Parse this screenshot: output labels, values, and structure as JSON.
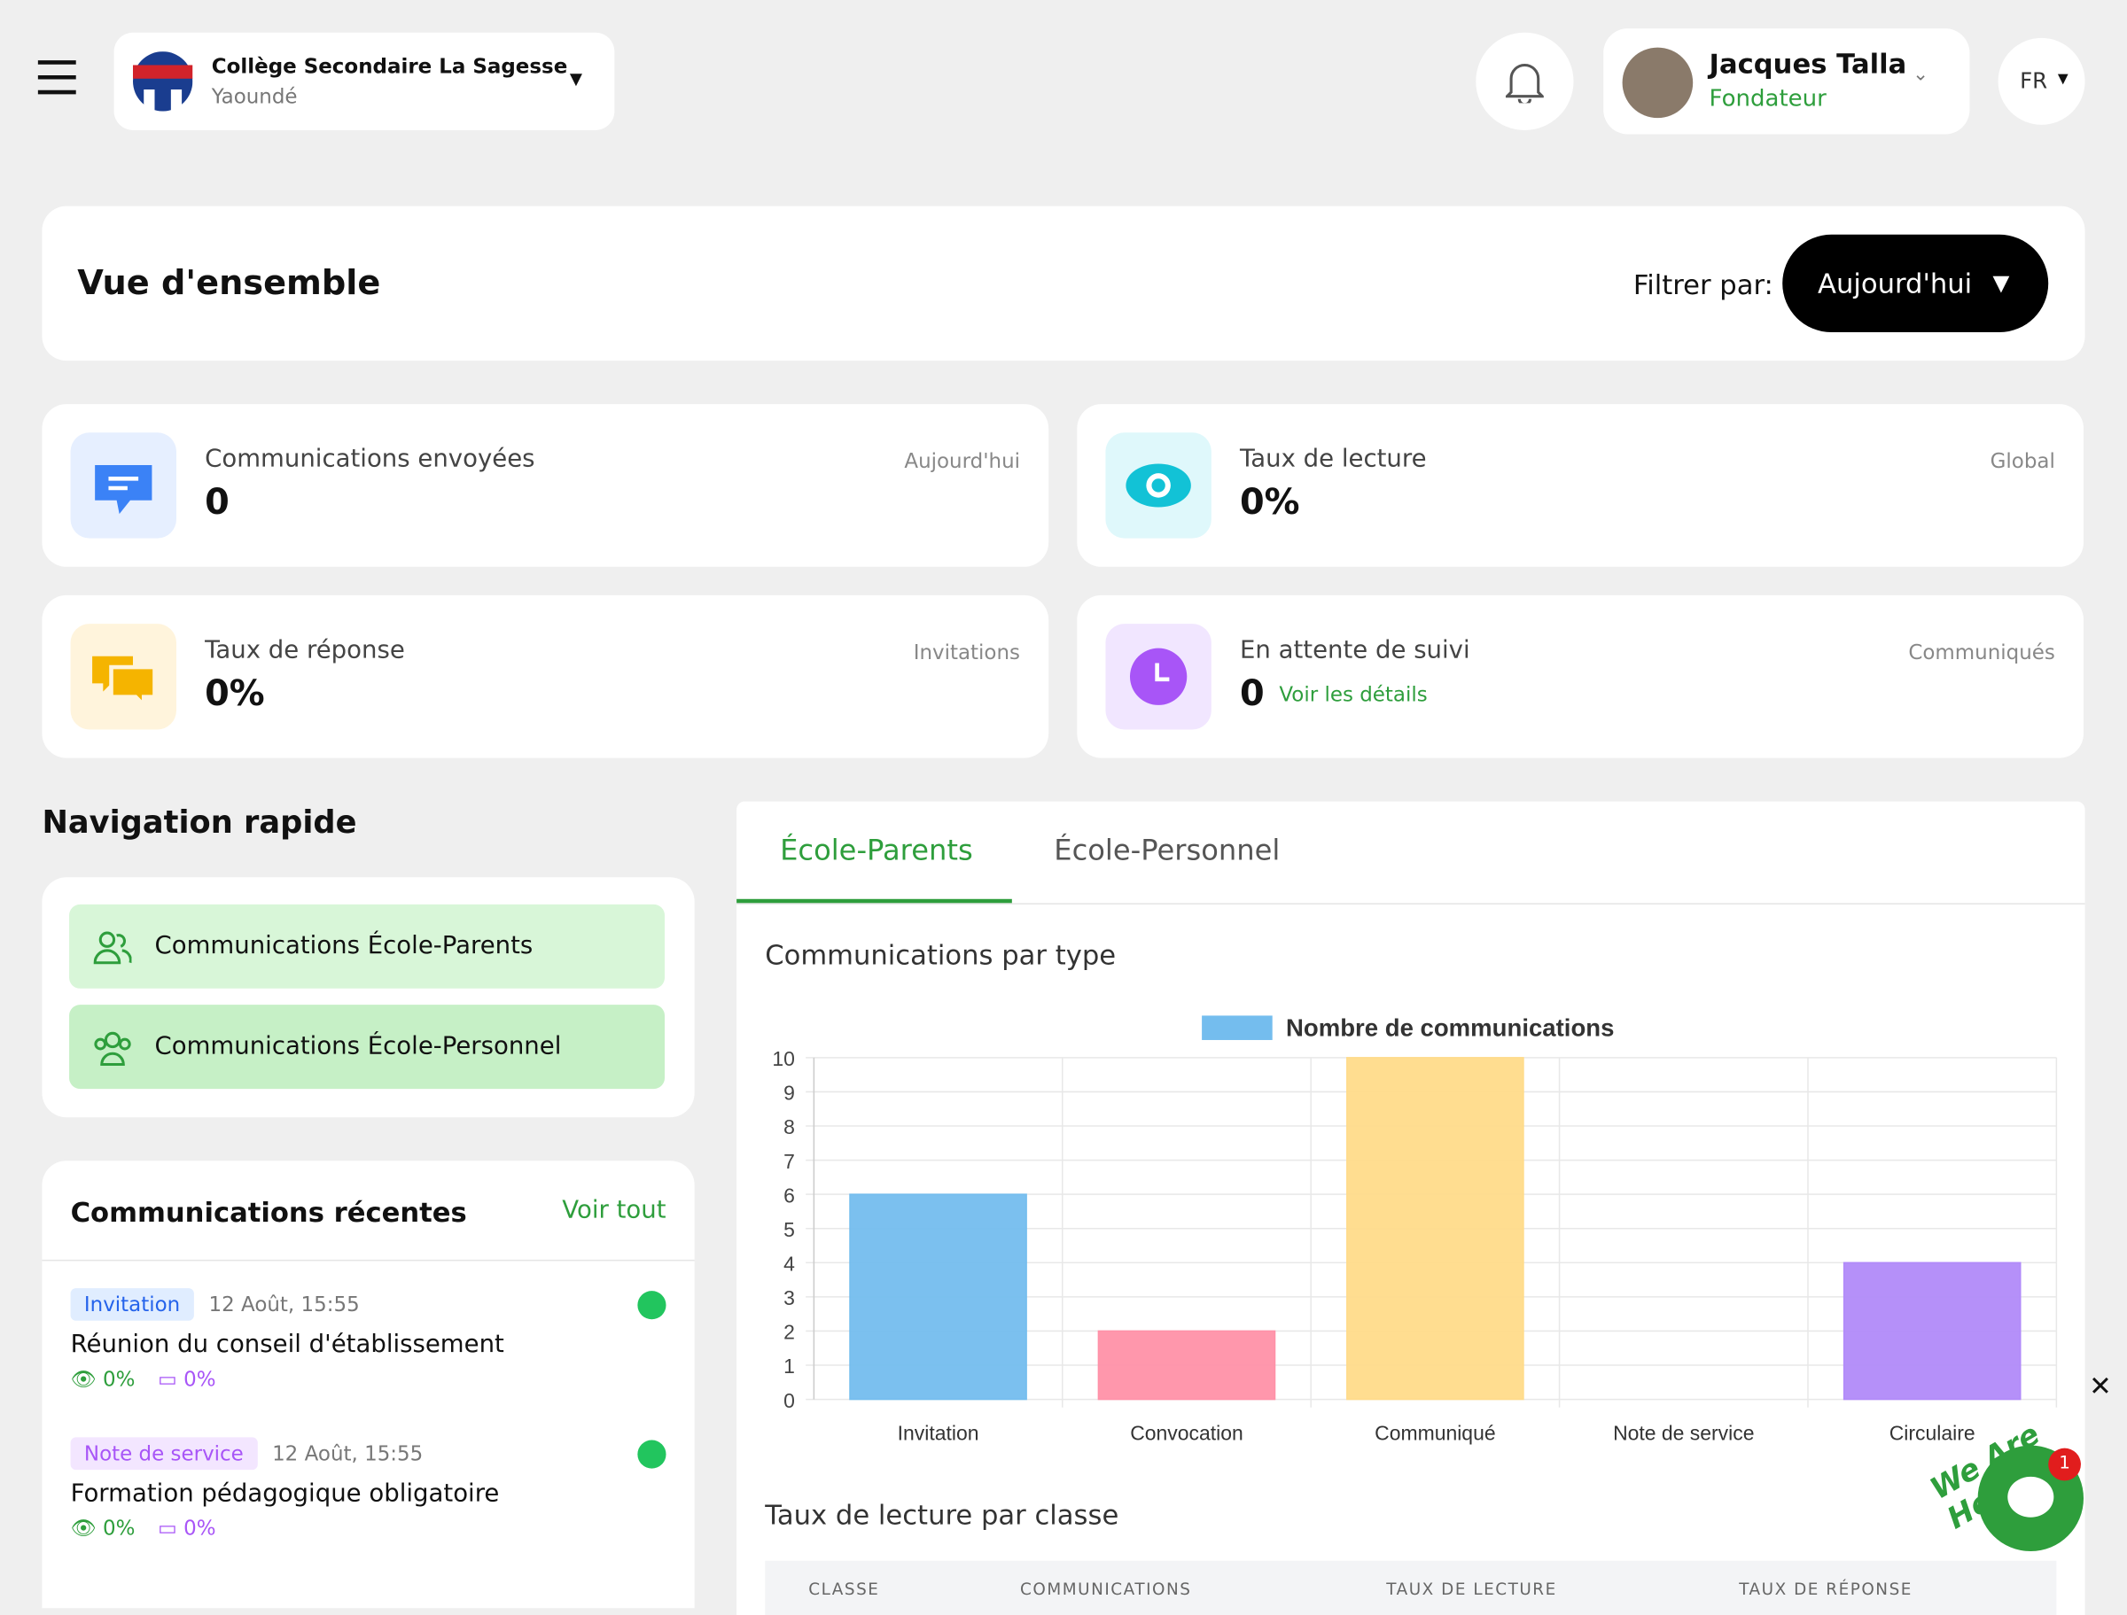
{
  "header": {
    "school_name": "Collège Secondaire La Sagesse",
    "city": "Yaoundé",
    "user_name": "Jacques Talla",
    "user_role": "Fondateur",
    "language": "FR"
  },
  "overview": {
    "title": "Vue d'ensemble",
    "filter_label": "Filtrer par:",
    "filter_value": "Aujourd'hui"
  },
  "stats": [
    {
      "label": "Communications envoyées",
      "value": "0",
      "scope": "Aujourd'hui"
    },
    {
      "label": "Taux de lecture",
      "value": "0%",
      "scope": "Global"
    },
    {
      "label": "Taux de réponse",
      "value": "0%",
      "scope": "Invitations"
    },
    {
      "label": "En attente de suivi",
      "value": "0",
      "scope": "Communiqués",
      "link": "Voir les détails"
    }
  ],
  "quick_nav": {
    "title": "Navigation rapide",
    "items": [
      "Communications École-Parents",
      "Communications École-Personnel"
    ]
  },
  "recent": {
    "title": "Communications récentes",
    "see_all": "Voir tout",
    "items": [
      {
        "tag": "Invitation",
        "date": "12 Août, 15:55",
        "title": "Réunion du conseil d'établissement",
        "read": "0%",
        "reply": "0%"
      },
      {
        "tag": "Note de service",
        "date": "12 Août, 15:55",
        "title": "Formation pédagogique obligatoire",
        "read": "0%",
        "reply": "0%"
      }
    ]
  },
  "tabs": [
    "École-Parents",
    "École-Personnel"
  ],
  "chart": {
    "type": "bar",
    "title": "Communications par type",
    "legend": "Nombre de communications",
    "legend_color": "#74bdee",
    "categories": [
      "Invitation",
      "Convocation",
      "Communiqué",
      "Note de service",
      "Circulaire"
    ],
    "values": [
      6,
      2,
      10,
      0,
      4
    ],
    "colors": [
      "#74bdee",
      "#ff91a8",
      "#ffdb8a",
      "#9ad0f5",
      "#b18af9"
    ],
    "ylim": [
      0,
      10
    ],
    "yticks": [
      0,
      1,
      2,
      3,
      4,
      5,
      6,
      7,
      8,
      9,
      10
    ],
    "grid": true
  },
  "table": {
    "title": "Taux de lecture par classe",
    "headers": [
      "CLASSE",
      "COMMUNICATIONS",
      "TAUX DE LECTURE",
      "TAUX DE RÉPONSE"
    ]
  },
  "chat": {
    "text": "We Are Here!",
    "badge": "1"
  }
}
